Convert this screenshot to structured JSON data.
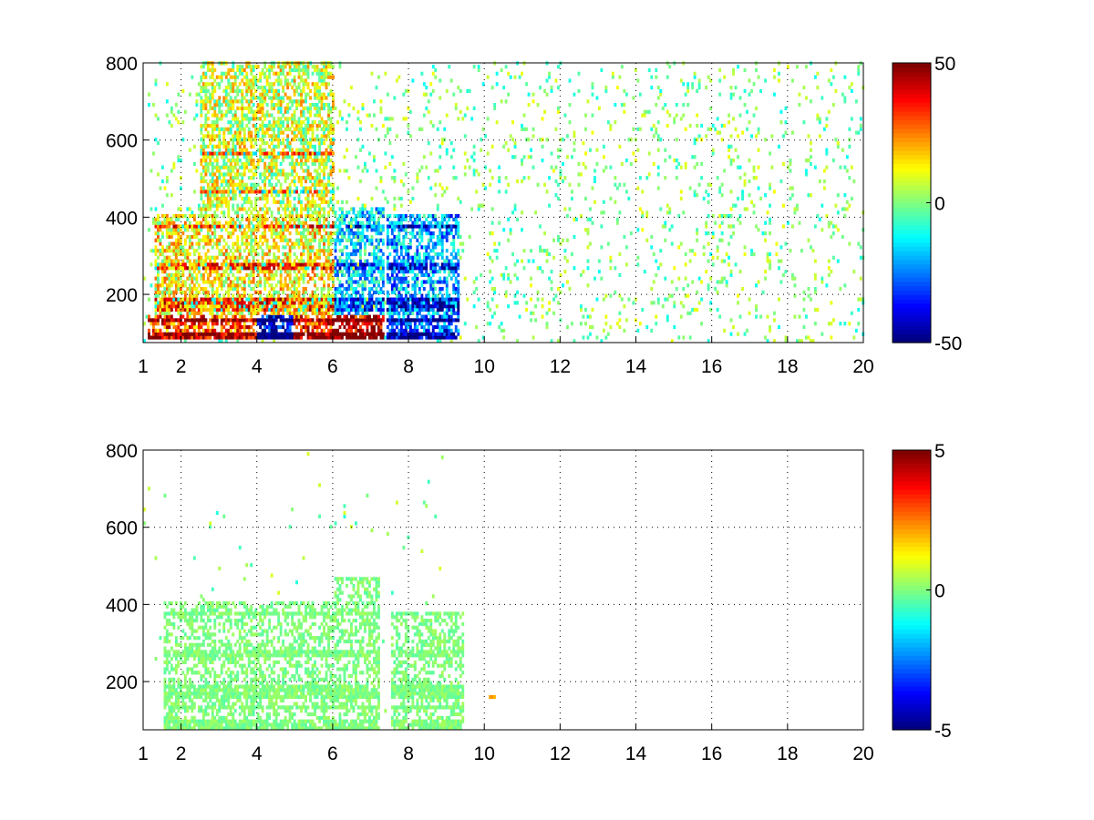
{
  "chart_data": [
    {
      "type": "heatmap",
      "title": "",
      "xlabel": "",
      "ylabel": "",
      "xlim": [
        1,
        20
      ],
      "ylim": [
        75,
        800
      ],
      "x_tick_labels": [
        "1",
        "2",
        "4",
        "6",
        "8",
        "10",
        "12",
        "14",
        "16",
        "18",
        "20"
      ],
      "y_tick_labels": [
        "200",
        "400",
        "600",
        "800"
      ],
      "grid": true,
      "colormap": "jet",
      "colorbar": {
        "range": [
          -50,
          50
        ],
        "tick_labels": [
          "50",
          "0",
          "-50"
        ]
      },
      "background_color": "#ffffff",
      "harmonic_bands_y": [
        80,
        95,
        130,
        160,
        180,
        270,
        370,
        460,
        560
      ],
      "regions": [
        {
          "x": [
            1.1,
            4.0
          ],
          "y": [
            80,
            140
          ],
          "value": 30
        },
        {
          "x": [
            4.0,
            4.9
          ],
          "y": [
            80,
            140
          ],
          "value": -40
        },
        {
          "x": [
            4.9,
            6.0
          ],
          "y": [
            80,
            140
          ],
          "value": 35
        },
        {
          "x": [
            6.0,
            7.3
          ],
          "y": [
            80,
            140
          ],
          "value": 40
        },
        {
          "x": [
            7.4,
            9.3
          ],
          "y": [
            80,
            140
          ],
          "value": -30
        },
        {
          "x": [
            1.3,
            6.0
          ],
          "y": [
            140,
            400
          ],
          "value": 12
        },
        {
          "x": [
            6.0,
            7.3
          ],
          "y": [
            140,
            420
          ],
          "value": -15
        },
        {
          "x": [
            7.4,
            9.3
          ],
          "y": [
            140,
            400
          ],
          "value": -20
        },
        {
          "x": [
            2.5,
            6.0
          ],
          "y": [
            400,
            800
          ],
          "value": 8
        },
        {
          "x": [
            4.0,
            5.0
          ],
          "y": [
            560,
            800
          ],
          "value": 10
        }
      ]
    },
    {
      "type": "heatmap",
      "title": "",
      "xlabel": "",
      "ylabel": "",
      "xlim": [
        1,
        20
      ],
      "ylim": [
        75,
        800
      ],
      "x_tick_labels": [
        "1",
        "2",
        "4",
        "6",
        "8",
        "10",
        "12",
        "14",
        "16",
        "18",
        "20"
      ],
      "y_tick_labels": [
        "200",
        "400",
        "600",
        "800"
      ],
      "grid": true,
      "colormap": "jet",
      "colorbar": {
        "range": [
          -5,
          5
        ],
        "tick_labels": [
          "5",
          "0",
          "-5"
        ]
      },
      "background_color": "#ffffff",
      "harmonic_bands_y": [
        80,
        95,
        130,
        160,
        180,
        270,
        370,
        460,
        560
      ],
      "regions": [
        {
          "x": [
            1.5,
            6.0
          ],
          "y": [
            75,
            400
          ],
          "value": 0
        },
        {
          "x": [
            6.0,
            7.2
          ],
          "y": [
            75,
            470
          ],
          "value": 0
        },
        {
          "x": [
            7.5,
            9.4
          ],
          "y": [
            75,
            380
          ],
          "value": 0
        },
        {
          "x": [
            10.1,
            10.3
          ],
          "y": [
            150,
            165
          ],
          "value": 2
        }
      ]
    }
  ]
}
